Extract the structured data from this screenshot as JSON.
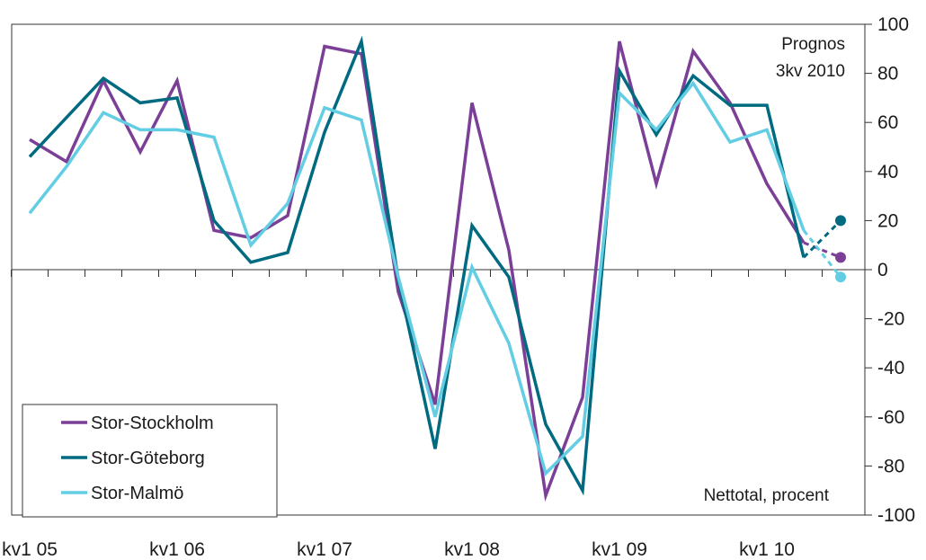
{
  "chart_data": {
    "type": "line",
    "title": "",
    "xlabel": "",
    "ylabel": "",
    "ylim": [
      -100,
      100
    ],
    "yticks": [
      100,
      80,
      60,
      40,
      20,
      0,
      -20,
      -40,
      -60,
      -80,
      -100
    ],
    "grid": false,
    "legend_position": "bottom-left",
    "x_labels": [
      "kv1 05",
      "kv1 06",
      "kv1 07",
      "kv1 08",
      "kv1 09",
      "kv1 10"
    ],
    "categories": [
      "kv1 05",
      "kv2 05",
      "kv3 05",
      "kv4 05",
      "kv1 06",
      "kv2 06",
      "kv3 06",
      "kv4 06",
      "kv1 07",
      "kv2 07",
      "kv3 07",
      "kv4 07",
      "kv1 08",
      "kv2 08",
      "kv3 08",
      "kv4 08",
      "kv1 09",
      "kv2 09",
      "kv3 09",
      "kv4 09",
      "kv1 10",
      "kv2 10",
      "kv3 10"
    ],
    "annotations": {
      "forecast": "Prognos\n3kv 2010",
      "unit": "Nettotal, procent"
    },
    "series": [
      {
        "name": "Stor-Stockholm",
        "color": "#7b3f98",
        "values": [
          53,
          44,
          77,
          48,
          77,
          16,
          13,
          22,
          91,
          88,
          -9,
          -55,
          68,
          8,
          -92,
          -52,
          93,
          35,
          89,
          68,
          35,
          11,
          null
        ],
        "forecast": [
          11,
          5
        ]
      },
      {
        "name": "Stor-Göteborg",
        "color": "#006a80",
        "values": [
          46,
          62,
          78,
          68,
          70,
          20,
          3,
          7,
          56,
          93,
          -4,
          -73,
          18,
          -3,
          -63,
          -90,
          81,
          55,
          79,
          67,
          67,
          5,
          null
        ],
        "forecast": [
          5,
          20
        ]
      },
      {
        "name": "Stor-Malmö",
        "color": "#62cde3",
        "values": [
          23,
          42,
          64,
          57,
          57,
          54,
          10,
          27,
          66,
          61,
          -3,
          -60,
          1,
          -30,
          -83,
          -68,
          72,
          57,
          76,
          52,
          57,
          16,
          null
        ],
        "forecast": [
          16,
          -3
        ]
      }
    ]
  }
}
